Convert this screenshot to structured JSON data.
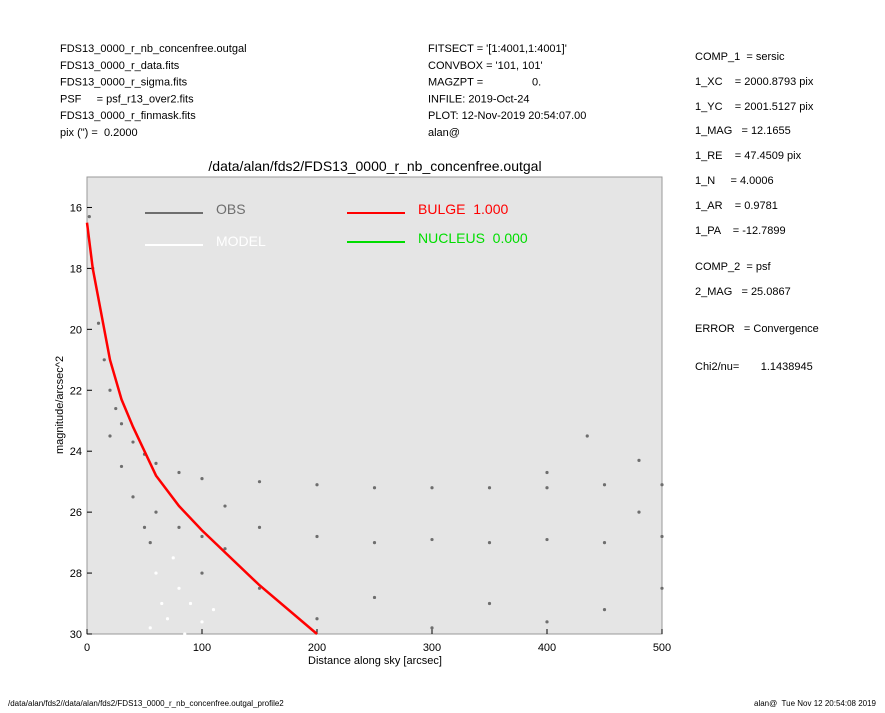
{
  "header": {
    "left": [
      "FDS13_0000_r_nb_concenfree.outgal",
      "FDS13_0000_r_data.fits",
      "FDS13_0000_r_sigma.fits",
      "PSF     = psf_r13_over2.fits",
      "FDS13_0000_r_finmask.fits",
      "pix (\") =  0.2000"
    ],
    "middle": [
      "FITSECT = '[1:4001,1:4001]'",
      "CONVBOX = '101, 101'",
      "MAGZPT =                0.",
      "INFILE: 2019-Oct-24",
      "PLOT: 12-Nov-2019 20:54:07.00",
      "alan@"
    ],
    "right": [
      "COMP_1  = sersic",
      "1_XC    = 2000.8793 pix",
      "1_YC    = 2001.5127 pix",
      "1_MAG   = 12.1655",
      "1_RE    = 47.4509 pix",
      "1_N     = 4.0006",
      "1_AR    = 0.9781",
      "1_PA    = -12.7899",
      "COMP_2  = psf",
      "2_MAG   = 25.0867",
      "ERROR   = Convergence",
      "Chi2/nu=       1.1438945"
    ]
  },
  "footer": {
    "left": "/data/alan/fds2//data/alan/fds2/FDS13_0000_r_nb_concenfree.outgal_profile2",
    "right": "alan@  Tue Nov 12 20:54:08 2019"
  },
  "chart_data": {
    "type": "scatter",
    "title": "/data/alan/fds2/FDS13_0000_r_nb_concenfree.outgal",
    "x_label": "Distance along sky [arcsec]",
    "y_label": "magnitude/arcsec^2",
    "xlim": [
      0,
      500
    ],
    "xticks": [
      0,
      100,
      200,
      300,
      400,
      500
    ],
    "ylim": [
      15,
      30
    ],
    "yticks": [
      16,
      18,
      20,
      22,
      24,
      26,
      28,
      30
    ],
    "y_inverted": true,
    "background": "#e5e5e5",
    "series": [
      {
        "name": "OBS",
        "color": "#6e6e6e",
        "mode": "markers",
        "x": [
          2,
          5,
          10,
          15,
          20,
          25,
          30,
          40,
          50,
          60,
          80,
          100,
          150,
          200,
          250,
          300,
          350,
          400,
          450,
          500,
          480,
          400,
          435,
          20,
          30,
          40,
          50,
          55,
          60,
          80,
          100,
          120,
          150,
          200,
          250,
          300,
          350,
          400,
          450,
          500,
          150,
          250,
          350,
          450,
          200,
          300,
          400,
          500,
          100,
          480,
          120
        ],
        "values": [
          16.3,
          18,
          19.8,
          21,
          22,
          22.6,
          23.1,
          23.7,
          24.1,
          24.4,
          24.7,
          24.9,
          25,
          25.1,
          25.2,
          25.2,
          25.2,
          25.2,
          25.1,
          25.1,
          24.3,
          24.7,
          23.5,
          23.5,
          24.5,
          25.5,
          26.5,
          27,
          26,
          26.5,
          26.8,
          27.2,
          26.5,
          26.8,
          27,
          26.9,
          27,
          26.9,
          27,
          26.8,
          28.5,
          28.8,
          29,
          29.2,
          29.5,
          29.8,
          29.6,
          28.5,
          28,
          26,
          25.8
        ]
      },
      {
        "name": "MODEL",
        "color": "#ffffff",
        "mode": "markers",
        "x": [
          60,
          65,
          70,
          80,
          90,
          100,
          110,
          55,
          75,
          85
        ],
        "values": [
          28,
          29,
          29.5,
          28.5,
          29,
          29.6,
          29.2,
          29.8,
          27.5,
          30
        ]
      },
      {
        "name": "BULGE  1.000",
        "color": "#ff0000",
        "mode": "line",
        "x": [
          0,
          5,
          10,
          20,
          30,
          40,
          60,
          80,
          100,
          150,
          200
        ],
        "values": [
          16.5,
          18,
          19,
          21,
          22.3,
          23.2,
          24.8,
          25.8,
          26.6,
          28.4,
          30
        ]
      },
      {
        "name": "NUCLEUS  0.000",
        "color": "#00dd00",
        "mode": "line",
        "x": [],
        "values": []
      }
    ]
  }
}
